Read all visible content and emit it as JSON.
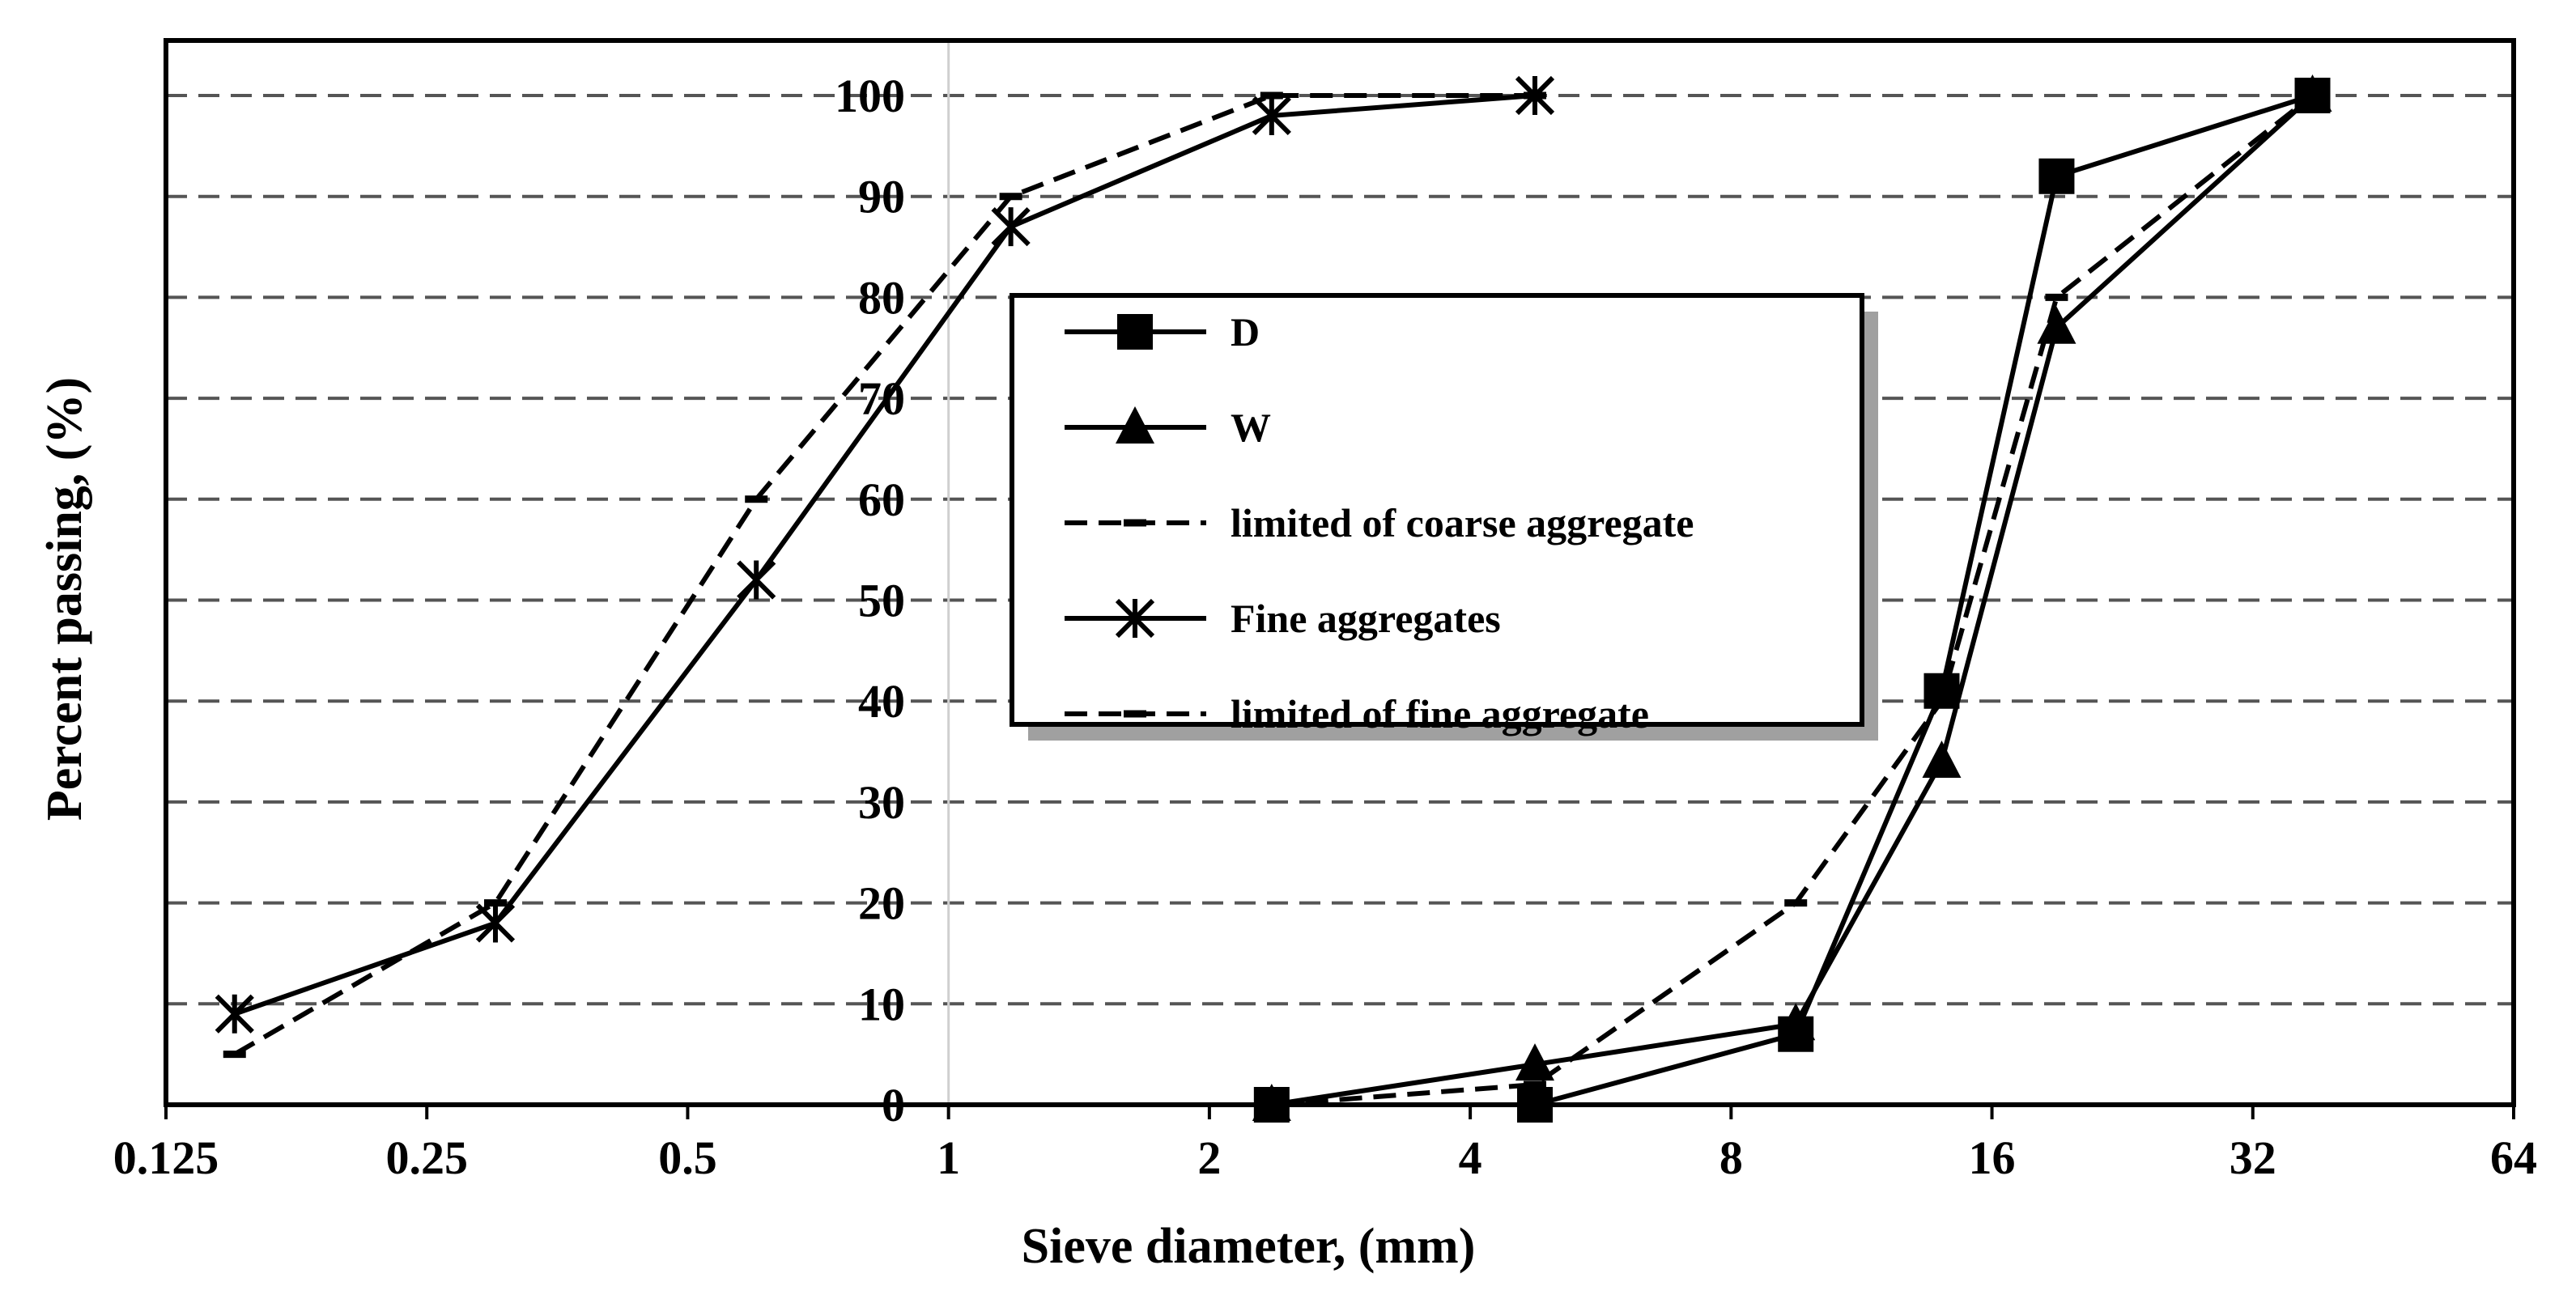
{
  "chart_data": {
    "type": "line",
    "xlabel": "Sieve diameter, (mm)",
    "ylabel": "Percent passing, (%)",
    "x_scale": "log2",
    "xlim": [
      0.125,
      64
    ],
    "ylim": [
      0,
      100
    ],
    "x_ticks": [
      "0.125",
      "0.25",
      "0.5",
      "1",
      "2",
      "4",
      "8",
      "16",
      "32",
      "64"
    ],
    "y_ticks": [
      "0",
      "10",
      "20",
      "30",
      "40",
      "50",
      "60",
      "70",
      "80",
      "90",
      "100"
    ],
    "grid": "horizontal dashed",
    "legend_position": "center",
    "series": [
      {
        "name": "D",
        "marker": "square",
        "dash": "solid",
        "x": [
          2.36,
          4.75,
          9.5,
          14,
          19,
          37.5
        ],
        "y": [
          0,
          0,
          7,
          41,
          92,
          100
        ]
      },
      {
        "name": "W",
        "marker": "triangle",
        "dash": "solid",
        "x": [
          2.36,
          4.75,
          9.5,
          14,
          19,
          37.5
        ],
        "y": [
          0,
          4,
          8,
          34,
          77,
          100
        ]
      },
      {
        "name": "limited of coarse aggregate",
        "marker": "dash",
        "dash": "dashed",
        "x": [
          2.36,
          4.75,
          9.5,
          14,
          19,
          37.5
        ],
        "y": [
          0,
          2,
          20,
          40,
          80,
          100
        ]
      },
      {
        "name": "Fine aggregates",
        "marker": "asterisk",
        "dash": "solid",
        "x": [
          0.15,
          0.3,
          0.6,
          1.18,
          2.36,
          4.75
        ],
        "y": [
          9,
          18,
          52,
          87,
          98,
          100
        ]
      },
      {
        "name": "limited of fine aggregate",
        "marker": "dash",
        "dash": "dashed",
        "x": [
          0.15,
          0.3,
          0.6,
          1.18,
          2.36,
          4.75
        ],
        "y": [
          5,
          20,
          60,
          90,
          100,
          100
        ]
      }
    ]
  }
}
